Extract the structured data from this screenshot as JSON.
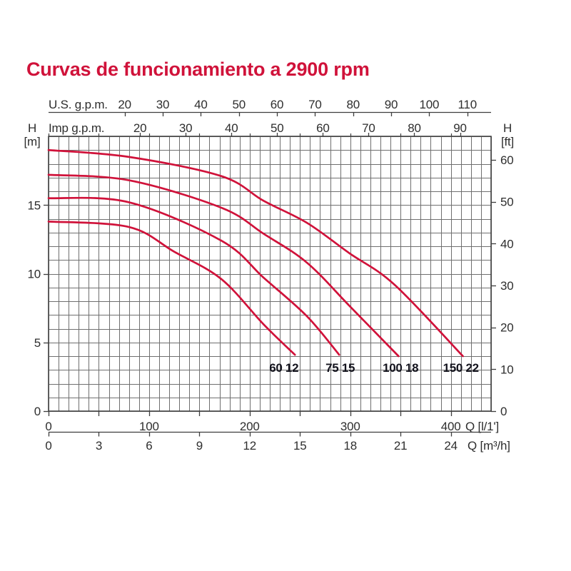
{
  "page": {
    "title": "Curvas de funcionamiento a 2900 rpm"
  },
  "chart_data": {
    "type": "line",
    "title": "Curvas de funcionamiento a 2900 rpm",
    "grid": "on",
    "legend_position": "labels-at-curve-ends",
    "axes": {
      "top_outer": {
        "label": "U.S. g.p.m.",
        "tick_values": [
          20,
          30,
          40,
          50,
          60,
          70,
          80,
          90,
          100,
          110
        ]
      },
      "top_inner": {
        "label": "Imp g.p.m.",
        "tick_values": [
          20,
          30,
          40,
          50,
          60,
          70,
          80,
          90
        ]
      },
      "left": {
        "label": "H",
        "unit": "[m]",
        "tick_values": [
          0,
          5,
          10,
          15
        ],
        "range": [
          0,
          20
        ],
        "minor_step_m": 1
      },
      "right": {
        "label": "H",
        "unit": "[ft]",
        "tick_values": [
          0,
          10,
          20,
          30,
          40,
          50,
          60
        ]
      },
      "bottom_inner": {
        "label": "Q [l/1']",
        "tick_values": [
          0,
          100,
          200,
          300,
          400
        ],
        "range": [
          0,
          440
        ],
        "minor_step_lmin": 10,
        "edge_tick_step_lmin": 50
      },
      "bottom_outer": {
        "label": "Q [m³/h]",
        "tick_values": [
          0,
          3,
          6,
          9,
          12,
          15,
          18,
          21,
          24
        ]
      }
    },
    "series": [
      {
        "name": "60 12",
        "label_q": 234,
        "points_q_h": [
          [
            0,
            13.8
          ],
          [
            80,
            13.4
          ],
          [
            125,
            11.6
          ],
          [
            172,
            9.6
          ],
          [
            214,
            6.3
          ],
          [
            245,
            4.1
          ]
        ]
      },
      {
        "name": "75 15",
        "label_q": 290,
        "points_q_h": [
          [
            0,
            15.5
          ],
          [
            80,
            15.2
          ],
          [
            172,
            12.4
          ],
          [
            214,
            9.7
          ],
          [
            257,
            6.9
          ],
          [
            289,
            4.1
          ]
        ]
      },
      {
        "name": "100 18",
        "label_q": 350,
        "points_q_h": [
          [
            0,
            17.2
          ],
          [
            80,
            16.8
          ],
          [
            172,
            14.8
          ],
          [
            214,
            12.9
          ],
          [
            257,
            10.8
          ],
          [
            300,
            7.6
          ],
          [
            348,
            4.0
          ]
        ]
      },
      {
        "name": "150 22",
        "label_q": 410,
        "points_q_h": [
          [
            0,
            19.0
          ],
          [
            80,
            18.5
          ],
          [
            172,
            17.1
          ],
          [
            214,
            15.3
          ],
          [
            257,
            13.7
          ],
          [
            299,
            11.5
          ],
          [
            344,
            9.2
          ],
          [
            412,
            4.0
          ]
        ]
      }
    ],
    "units_note": "Q in litres per minute (l/1'), H in metres; curves end near H = 4 m",
    "colors": {
      "curve": "#d0123a",
      "title": "#d0123a",
      "grid": "#6f6f6f",
      "axis": "#3e3e3e",
      "tick_text": "#2e2e2e",
      "curve_label_text": "#14141e",
      "background": "#ffffff"
    }
  }
}
